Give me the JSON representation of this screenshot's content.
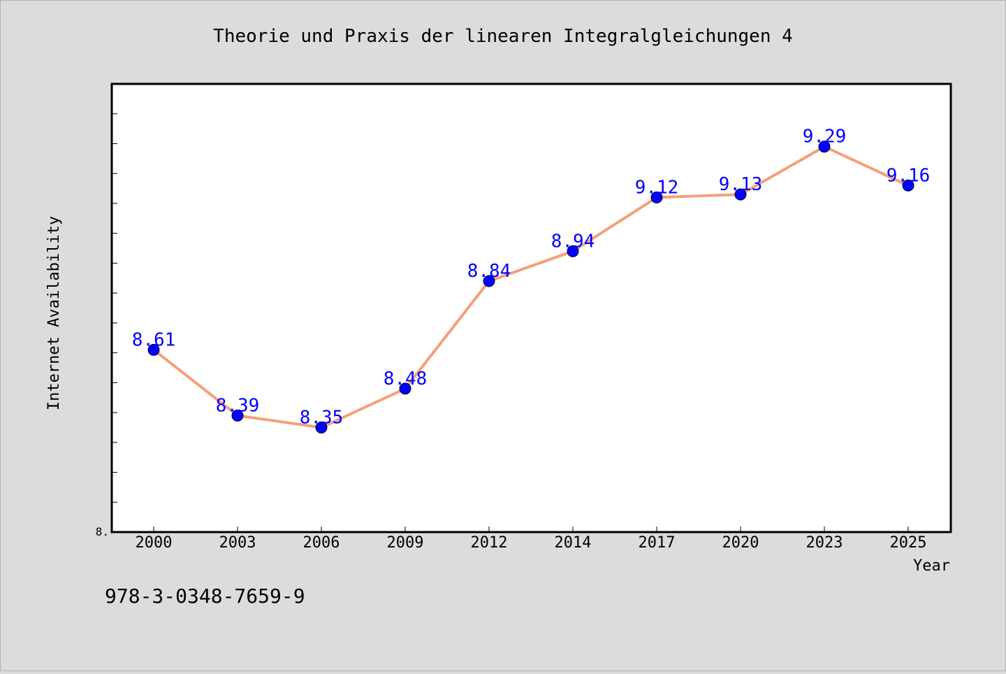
{
  "chart_data": {
    "type": "line",
    "title": "Theorie und Praxis der linearen Integralgleichungen 4",
    "xlabel": "Year",
    "ylabel": "Internet Availability",
    "categories": [
      "2000",
      "2003",
      "2006",
      "2009",
      "2012",
      "2014",
      "2017",
      "2020",
      "2023",
      "2025"
    ],
    "series": [
      {
        "values": [
          8.61,
          8.39,
          8.35,
          8.48,
          8.84,
          8.94,
          9.12,
          9.13,
          9.29,
          9.16
        ],
        "data_labels": [
          "8.61",
          "8.39",
          "8.35",
          "8.48",
          "8.84",
          "8.94",
          "9.12",
          "9.13",
          "9.29",
          "9.16"
        ]
      }
    ],
    "ylim": [
      8.0,
      9.5
    ],
    "y_tick_labels": [
      "8."
    ],
    "grid": false,
    "colors": {
      "line": "#f4a07a",
      "marker": "#0000ff",
      "label": "#0000ff",
      "background": "#dcdcdc",
      "plot_area": "#ffffff"
    }
  },
  "footer": {
    "isbn": "978-3-0348-7659-9"
  }
}
